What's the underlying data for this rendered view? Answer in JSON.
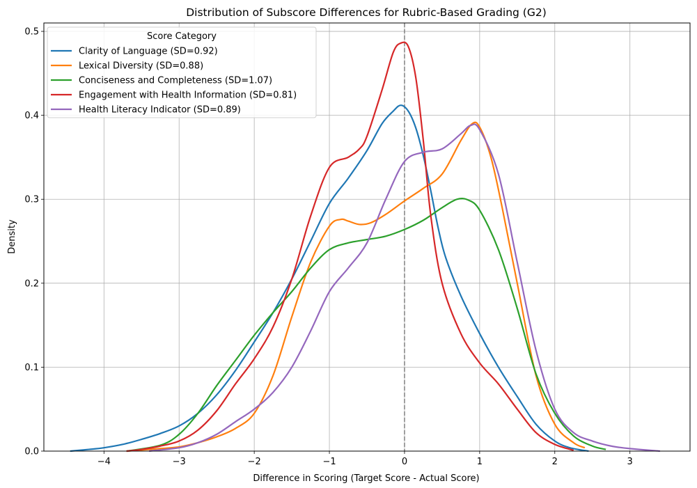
{
  "chart_data": {
    "type": "line",
    "title": "Distribution of Subscore Differences for Rubric-Based Grading (G2)",
    "xlabel": "Difference in Scoring (Target Score - Actual Score)",
    "ylabel": "Density",
    "xlim": [
      -4.8,
      3.8
    ],
    "ylim": [
      0,
      0.51
    ],
    "xticks": [
      -4,
      -3,
      -2,
      -1,
      0,
      1,
      2,
      3
    ],
    "yticks": [
      0.0,
      0.1,
      0.2,
      0.3,
      0.4,
      0.5
    ],
    "xtick_labels": [
      "−4",
      "−3",
      "−2",
      "−1",
      "0",
      "1",
      "2",
      "3"
    ],
    "ytick_labels": [
      "0.0",
      "0.1",
      "0.2",
      "0.3",
      "0.4",
      "0.5"
    ],
    "grid": true,
    "reference_line": {
      "x": 0,
      "style": "dashed",
      "color": "#808080"
    },
    "legend": {
      "title": "Score Category",
      "position": "top-left"
    },
    "series": [
      {
        "name": "Clarity of Language (SD=0.92)",
        "color": "#1f77b4",
        "points": [
          [
            -4.45,
            0.0
          ],
          [
            -4.2,
            0.002
          ],
          [
            -4.0,
            0.004
          ],
          [
            -3.75,
            0.008
          ],
          [
            -3.5,
            0.014
          ],
          [
            -3.25,
            0.021
          ],
          [
            -3.0,
            0.03
          ],
          [
            -2.75,
            0.045
          ],
          [
            -2.5,
            0.067
          ],
          [
            -2.25,
            0.096
          ],
          [
            -2.0,
            0.13
          ],
          [
            -1.75,
            0.165
          ],
          [
            -1.5,
            0.205
          ],
          [
            -1.25,
            0.25
          ],
          [
            -1.0,
            0.295
          ],
          [
            -0.75,
            0.325
          ],
          [
            -0.5,
            0.358
          ],
          [
            -0.3,
            0.39
          ],
          [
            -0.15,
            0.405
          ],
          [
            -0.05,
            0.412
          ],
          [
            0.05,
            0.405
          ],
          [
            0.15,
            0.385
          ],
          [
            0.25,
            0.352
          ],
          [
            0.35,
            0.31
          ],
          [
            0.45,
            0.265
          ],
          [
            0.55,
            0.23
          ],
          [
            0.75,
            0.185
          ],
          [
            1.0,
            0.14
          ],
          [
            1.25,
            0.1
          ],
          [
            1.5,
            0.065
          ],
          [
            1.75,
            0.032
          ],
          [
            2.0,
            0.012
          ],
          [
            2.2,
            0.004
          ],
          [
            2.45,
            0.0
          ]
        ]
      },
      {
        "name": "Lexical Diversity (SD=0.88)",
        "color": "#ff7f0e",
        "points": [
          [
            -3.7,
            0.0
          ],
          [
            -3.25,
            0.003
          ],
          [
            -3.0,
            0.005
          ],
          [
            -2.75,
            0.01
          ],
          [
            -2.5,
            0.017
          ],
          [
            -2.25,
            0.027
          ],
          [
            -2.0,
            0.045
          ],
          [
            -1.75,
            0.09
          ],
          [
            -1.5,
            0.16
          ],
          [
            -1.25,
            0.225
          ],
          [
            -1.0,
            0.268
          ],
          [
            -0.85,
            0.276
          ],
          [
            -0.75,
            0.274
          ],
          [
            -0.6,
            0.27
          ],
          [
            -0.45,
            0.272
          ],
          [
            -0.25,
            0.282
          ],
          [
            0.0,
            0.298
          ],
          [
            0.25,
            0.313
          ],
          [
            0.5,
            0.33
          ],
          [
            0.75,
            0.37
          ],
          [
            0.9,
            0.39
          ],
          [
            1.0,
            0.386
          ],
          [
            1.15,
            0.35
          ],
          [
            1.3,
            0.29
          ],
          [
            1.5,
            0.2
          ],
          [
            1.75,
            0.09
          ],
          [
            2.0,
            0.032
          ],
          [
            2.25,
            0.01
          ],
          [
            2.4,
            0.004
          ]
        ]
      },
      {
        "name": "Conciseness and Completeness (SD=1.07)",
        "color": "#2ca02c",
        "points": [
          [
            -3.7,
            0.0
          ],
          [
            -3.25,
            0.007
          ],
          [
            -3.0,
            0.02
          ],
          [
            -2.75,
            0.045
          ],
          [
            -2.5,
            0.078
          ],
          [
            -2.25,
            0.108
          ],
          [
            -2.0,
            0.138
          ],
          [
            -1.75,
            0.165
          ],
          [
            -1.5,
            0.19
          ],
          [
            -1.25,
            0.218
          ],
          [
            -1.0,
            0.24
          ],
          [
            -0.75,
            0.248
          ],
          [
            -0.5,
            0.252
          ],
          [
            -0.25,
            0.256
          ],
          [
            0.0,
            0.264
          ],
          [
            0.25,
            0.275
          ],
          [
            0.5,
            0.29
          ],
          [
            0.7,
            0.3
          ],
          [
            0.85,
            0.299
          ],
          [
            1.0,
            0.287
          ],
          [
            1.25,
            0.24
          ],
          [
            1.5,
            0.17
          ],
          [
            1.75,
            0.092
          ],
          [
            2.0,
            0.045
          ],
          [
            2.25,
            0.018
          ],
          [
            2.5,
            0.006
          ],
          [
            2.68,
            0.002
          ]
        ]
      },
      {
        "name": "Engagement with Health Information (SD=0.81)",
        "color": "#d62728",
        "points": [
          [
            -3.7,
            0.0
          ],
          [
            -3.5,
            0.002
          ],
          [
            -3.25,
            0.006
          ],
          [
            -3.0,
            0.012
          ],
          [
            -2.75,
            0.025
          ],
          [
            -2.5,
            0.048
          ],
          [
            -2.25,
            0.08
          ],
          [
            -2.0,
            0.11
          ],
          [
            -1.75,
            0.148
          ],
          [
            -1.5,
            0.205
          ],
          [
            -1.25,
            0.28
          ],
          [
            -1.0,
            0.338
          ],
          [
            -0.75,
            0.35
          ],
          [
            -0.6,
            0.36
          ],
          [
            -0.5,
            0.375
          ],
          [
            -0.3,
            0.43
          ],
          [
            -0.15,
            0.475
          ],
          [
            -0.05,
            0.486
          ],
          [
            0.05,
            0.482
          ],
          [
            0.15,
            0.445
          ],
          [
            0.25,
            0.37
          ],
          [
            0.35,
            0.28
          ],
          [
            0.5,
            0.2
          ],
          [
            0.75,
            0.14
          ],
          [
            1.0,
            0.105
          ],
          [
            1.25,
            0.08
          ],
          [
            1.5,
            0.05
          ],
          [
            1.75,
            0.022
          ],
          [
            2.0,
            0.008
          ],
          [
            2.25,
            0.001
          ]
        ]
      },
      {
        "name": "Health Literacy Indicator (SD=0.89)",
        "color": "#9467bd",
        "points": [
          [
            -3.4,
            0.0
          ],
          [
            -3.0,
            0.004
          ],
          [
            -2.75,
            0.01
          ],
          [
            -2.5,
            0.02
          ],
          [
            -2.25,
            0.035
          ],
          [
            -2.0,
            0.05
          ],
          [
            -1.75,
            0.07
          ],
          [
            -1.5,
            0.1
          ],
          [
            -1.25,
            0.143
          ],
          [
            -1.0,
            0.19
          ],
          [
            -0.75,
            0.218
          ],
          [
            -0.5,
            0.248
          ],
          [
            -0.25,
            0.3
          ],
          [
            0.0,
            0.345
          ],
          [
            0.25,
            0.356
          ],
          [
            0.5,
            0.36
          ],
          [
            0.75,
            0.378
          ],
          [
            0.88,
            0.388
          ],
          [
            1.0,
            0.383
          ],
          [
            1.25,
            0.33
          ],
          [
            1.5,
            0.225
          ],
          [
            1.75,
            0.12
          ],
          [
            2.0,
            0.05
          ],
          [
            2.25,
            0.022
          ],
          [
            2.5,
            0.012
          ],
          [
            2.75,
            0.006
          ],
          [
            3.0,
            0.003
          ],
          [
            3.4,
            0.0
          ]
        ]
      }
    ]
  }
}
